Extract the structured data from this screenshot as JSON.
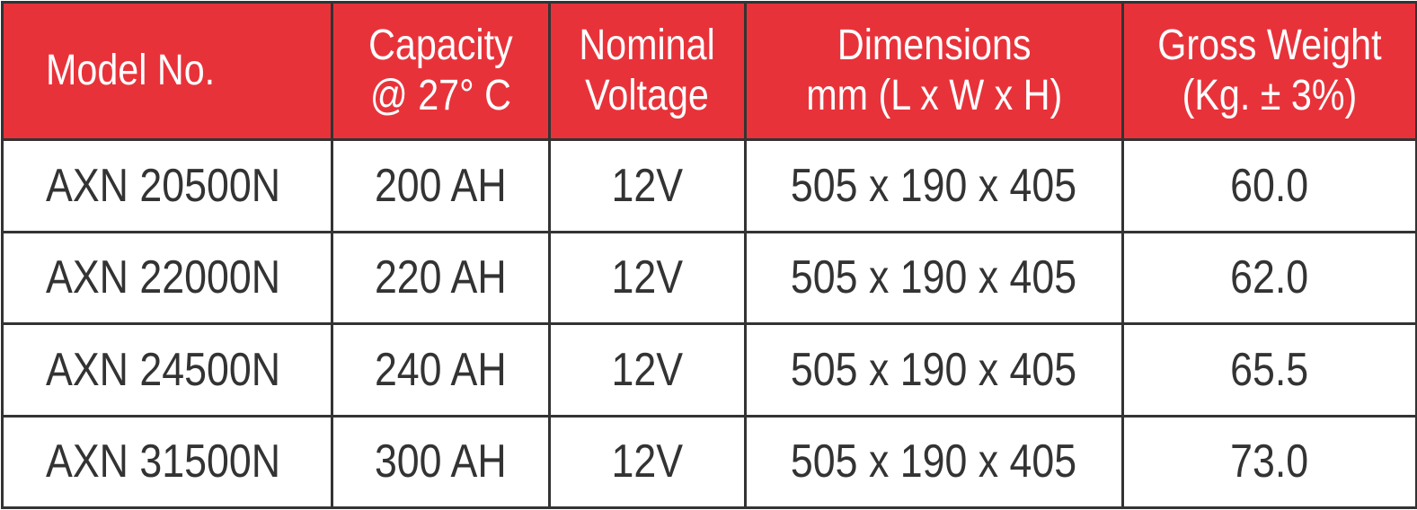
{
  "table": {
    "header": [
      [
        "Model No."
      ],
      [
        "Capacity",
        "@ 27° C"
      ],
      [
        "Nominal",
        "Voltage"
      ],
      [
        "Dimensions",
        "mm (L x W x H)"
      ],
      [
        "Gross Weight",
        "(Kg. ± 3%)"
      ]
    ],
    "rows": [
      [
        "AXN 20500N",
        "200 AH",
        "12V",
        "505 x 190 x 405",
        "60.0"
      ],
      [
        "AXN 22000N",
        "220 AH",
        "12V",
        "505 x 190 x 405",
        "62.0"
      ],
      [
        "AXN 24500N",
        "240 AH",
        "12V",
        "505 x 190 x 405",
        "65.5"
      ],
      [
        "AXN 31500N",
        "300 AH",
        "12V",
        "505 x 190 x 405",
        "73.0"
      ]
    ]
  }
}
